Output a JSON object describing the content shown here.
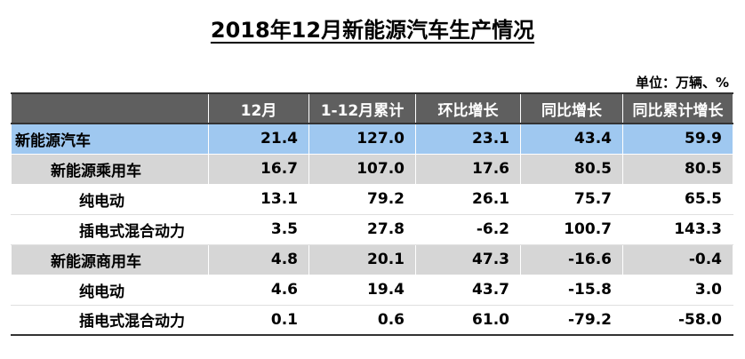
{
  "chart_data": {
    "type": "table",
    "title": "2018年12月新能源汽车生产情况",
    "unit_note": "单位：万辆、%",
    "columns": [
      "",
      "12月",
      "1-12月累计",
      "环比增长",
      "同比增长",
      "同比累计增长"
    ],
    "rows": [
      {
        "label": "新能源汽车",
        "level": 0,
        "values": [
          "21.4",
          "127.0",
          "23.1",
          "43.4",
          "59.9"
        ]
      },
      {
        "label": "新能源乘用车",
        "level": 1,
        "values": [
          "16.7",
          "107.0",
          "17.6",
          "80.5",
          "80.5"
        ]
      },
      {
        "label": "纯电动",
        "level": 2,
        "values": [
          "13.1",
          "79.2",
          "26.1",
          "75.7",
          "65.5"
        ]
      },
      {
        "label": "插电式混合动力",
        "level": 2,
        "values": [
          "3.5",
          "27.8",
          "-6.2",
          "100.7",
          "143.3"
        ]
      },
      {
        "label": "新能源商用车",
        "level": 1,
        "values": [
          "4.8",
          "20.1",
          "47.3",
          "-16.6",
          "-0.4"
        ]
      },
      {
        "label": "纯电动",
        "level": 2,
        "values": [
          "4.6",
          "19.4",
          "43.7",
          "-15.8",
          "3.0"
        ]
      },
      {
        "label": "插电式混合动力",
        "level": 2,
        "values": [
          "0.1",
          "0.6",
          "61.0",
          "-79.2",
          "-58.0"
        ]
      }
    ],
    "colors": {
      "header_bg": "#5f5f5f",
      "header_text": "#ffffff",
      "total_row_bg": "#9fc8f0",
      "subtotal_row_bg": "#d6d6d6",
      "detail_row_bg": "#ffffff"
    }
  }
}
